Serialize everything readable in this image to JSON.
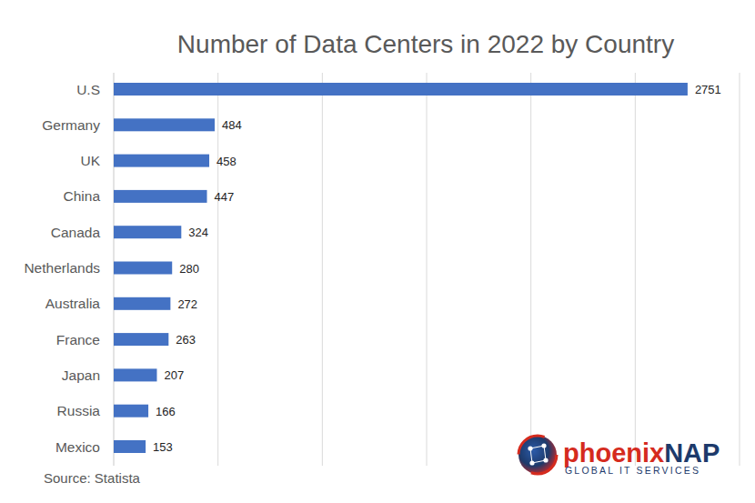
{
  "chart_data": {
    "type": "bar",
    "orientation": "horizontal",
    "title": "Number of Data Centers in 2022 by Country",
    "categories": [
      "U.S",
      "Germany",
      "UK",
      "China",
      "Canada",
      "Netherlands",
      "Australia",
      "France",
      "Japan",
      "Russia",
      "Mexico"
    ],
    "values": [
      2751,
      484,
      458,
      447,
      324,
      280,
      272,
      263,
      207,
      166,
      153
    ],
    "color": "#4472c4",
    "xlim": [
      0,
      3000
    ],
    "xticks": [
      0,
      500,
      1000,
      1500,
      2000,
      2500,
      3000
    ],
    "grid": true,
    "data_labels": true,
    "tick_labels": "y",
    "annotations": [
      "Source: Statista",
      "phoenix",
      "NAP",
      "GLOBAL IT SERVICES"
    ]
  }
}
